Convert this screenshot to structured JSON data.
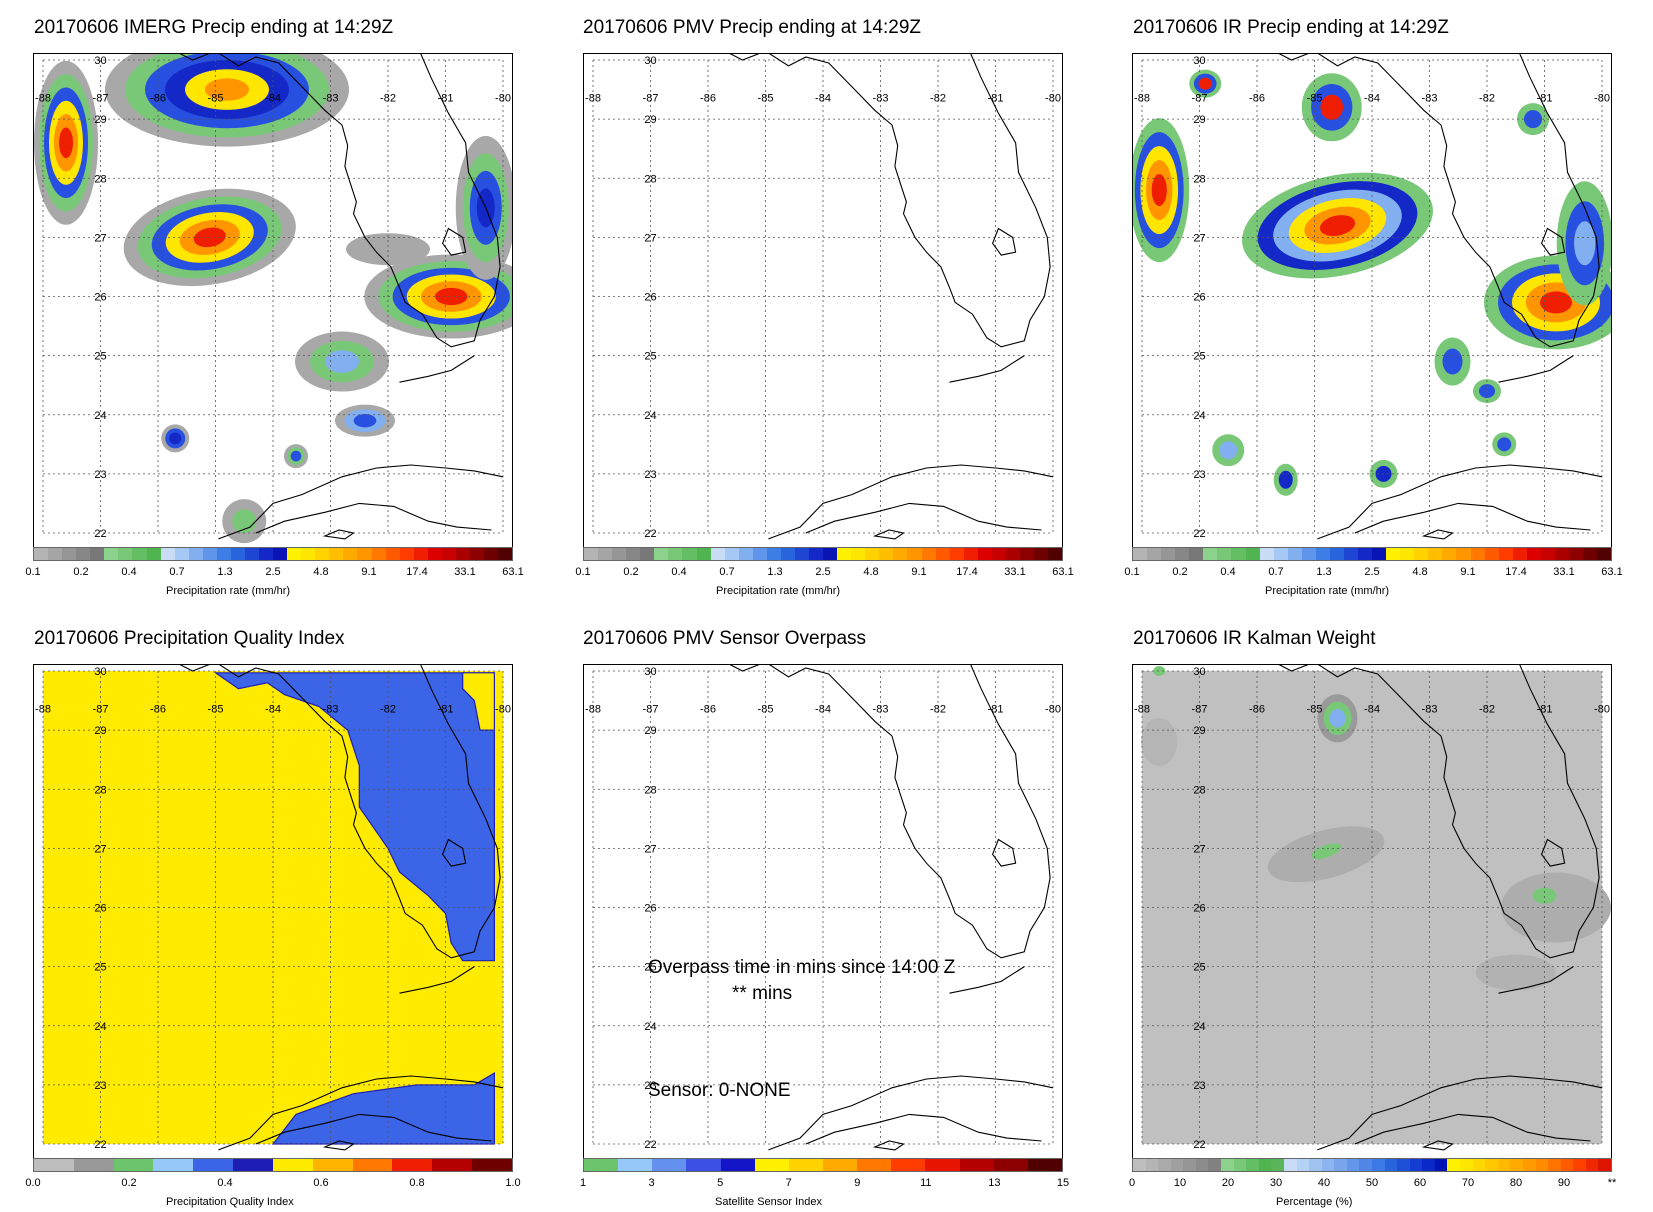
{
  "panels": [
    {
      "title": "20170606 IMERG Precip ending at 14:29Z",
      "colorbar": "precip",
      "caption": "Precipitation rate (mm/hr)"
    },
    {
      "title": "20170606 PMV Precip ending at 14:29Z",
      "colorbar": "precip",
      "caption": "Precipitation rate (mm/hr)"
    },
    {
      "title": "20170606 IR Precip ending at 14:29Z",
      "colorbar": "precip",
      "caption": "Precipitation rate (mm/hr)"
    },
    {
      "title": "20170606 Precipitation Quality Index",
      "colorbar": "pqi",
      "caption": "Precipitation Quality Index"
    },
    {
      "title": "20170606 PMV Sensor Overpass",
      "colorbar": "sensor",
      "caption": "Satellite Sensor Index"
    },
    {
      "title": "20170606 IR Kalman Weight",
      "colorbar": "pct",
      "caption": "Percentage (%)"
    }
  ],
  "map_axes": {
    "lon_labels": [
      "-88",
      "-87",
      "-86",
      "-85",
      "-84",
      "-83",
      "-82",
      "-81",
      "-80"
    ],
    "lat_labels": [
      "30",
      "29",
      "28",
      "27",
      "26",
      "25",
      "24",
      "23",
      "22"
    ],
    "lon_range": [
      -88,
      -80
    ],
    "lat_range": [
      22,
      30
    ]
  },
  "colorbars": {
    "precip": {
      "colors": [
        "#b4b4b4",
        "#a5a5a5",
        "#969696",
        "#878787",
        "#787878",
        "#8cd28c",
        "#78c878",
        "#64be64",
        "#50b450",
        "#c8dcf5",
        "#a5c8f5",
        "#82aff0",
        "#5f96eb",
        "#3c7de6",
        "#2864dc",
        "#1e46d2",
        "#1428c8",
        "#0a14b4",
        "#fff100",
        "#ffe600",
        "#ffd200",
        "#ffbe00",
        "#ffaa00",
        "#ff9600",
        "#ff7800",
        "#ff5a00",
        "#ff3c00",
        "#f01e00",
        "#dc0000",
        "#c80000",
        "#aa0000",
        "#8c0000",
        "#6e0000",
        "#500000"
      ],
      "tick_labels": [
        "0.1",
        "0.2",
        "0.4",
        "0.7",
        "1.3",
        "2.5",
        "4.8",
        "9.1",
        "17.4",
        "33.1",
        "63.1"
      ]
    },
    "pqi": {
      "colors": [
        "#bebebe",
        "#999999",
        "#6cc46c",
        "#96c8fa",
        "#3c64e6",
        "#1e1eb4",
        "#ffeb00",
        "#ffb400",
        "#ff7800",
        "#f01e00",
        "#b40000",
        "#6e0000"
      ],
      "tick_labels": [
        "0.0",
        "0.2",
        "0.4",
        "0.6",
        "0.8",
        "1.0"
      ]
    },
    "sensor": {
      "colors": [
        "#6cc46c",
        "#96c8fa",
        "#6490f0",
        "#3c50e6",
        "#1414c8",
        "#fff100",
        "#ffd200",
        "#ffaa00",
        "#ff7800",
        "#ff3c00",
        "#e61400",
        "#b40000",
        "#8c0000",
        "#500000"
      ],
      "tick_labels": [
        "1",
        "3",
        "5",
        "7",
        "9",
        "11",
        "13",
        "15"
      ]
    },
    "pct": {
      "colors": [
        "#bebebe",
        "#b4b4b4",
        "#aaaaaa",
        "#a0a0a0",
        "#969696",
        "#8c8c8c",
        "#828282",
        "#8cd28c",
        "#78c878",
        "#64be64",
        "#50b450",
        "#5ab45a",
        "#c8dcf5",
        "#b4d2f5",
        "#a0c3f0",
        "#8cb4f0",
        "#78a5eb",
        "#6496eb",
        "#5087e6",
        "#3c78e6",
        "#2864dc",
        "#1e50d7",
        "#143cd2",
        "#0a28c8",
        "#0014b4",
        "#fff100",
        "#ffe600",
        "#ffd700",
        "#ffc800",
        "#ffb900",
        "#ffaa00",
        "#ff9b00",
        "#ff8c00",
        "#ff7300",
        "#ff5a00",
        "#ff4100",
        "#f02800",
        "#dc1400"
      ],
      "tick_labels": [
        "0",
        "10",
        "20",
        "30",
        "40",
        "50",
        "60",
        "70",
        "80",
        "90",
        "**"
      ]
    }
  },
  "overpass": {
    "time_text": "Overpass time in mins since 14:00 Z",
    "mins_text": "** mins",
    "sensor_text": "Sensor:   0-NONE"
  }
}
